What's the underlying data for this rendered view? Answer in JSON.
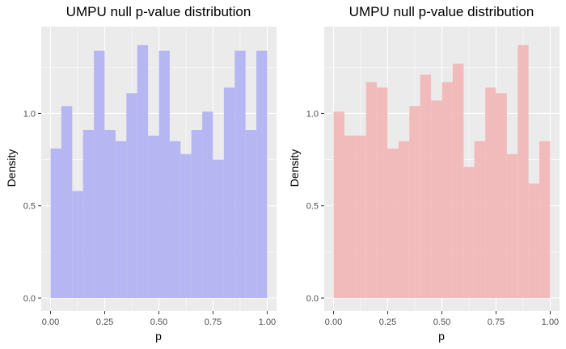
{
  "colors": {
    "panel_background": "#ebebeb",
    "grid": "#ffffff",
    "tick": "#333333",
    "tick_label": "#4d4d4d",
    "left_fill": "#b3b3f2",
    "right_fill": "#f2b8b8"
  },
  "chart_data": [
    {
      "type": "bar",
      "title": "UMPU null p-value distribution",
      "xlabel": "p",
      "ylabel": "Density",
      "xlim": [
        0.0,
        1.0
      ],
      "ylim": [
        0.0,
        1.5
      ],
      "xticks": [
        0.0,
        0.25,
        0.5,
        0.75,
        1.0
      ],
      "xtick_labels": [
        "0.00",
        "0.25",
        "0.50",
        "0.75",
        "1.00"
      ],
      "yticks": [
        0.0,
        0.5,
        1.0
      ],
      "ytick_labels": [
        "0.0",
        "0.5",
        "1.0"
      ],
      "bin_width": 0.05,
      "bins": [
        {
          "x0": 0.0,
          "x1": 0.05,
          "density": 0.81
        },
        {
          "x0": 0.05,
          "x1": 0.1,
          "density": 1.04
        },
        {
          "x0": 0.1,
          "x1": 0.15,
          "density": 0.58
        },
        {
          "x0": 0.15,
          "x1": 0.2,
          "density": 0.91
        },
        {
          "x0": 0.2,
          "x1": 0.25,
          "density": 1.34
        },
        {
          "x0": 0.25,
          "x1": 0.3,
          "density": 0.91
        },
        {
          "x0": 0.3,
          "x1": 0.35,
          "density": 0.85
        },
        {
          "x0": 0.35,
          "x1": 0.4,
          "density": 1.11
        },
        {
          "x0": 0.4,
          "x1": 0.45,
          "density": 1.37
        },
        {
          "x0": 0.45,
          "x1": 0.5,
          "density": 0.88
        },
        {
          "x0": 0.5,
          "x1": 0.55,
          "density": 1.34
        },
        {
          "x0": 0.55,
          "x1": 0.6,
          "density": 0.85
        },
        {
          "x0": 0.6,
          "x1": 0.65,
          "density": 0.78
        },
        {
          "x0": 0.65,
          "x1": 0.7,
          "density": 0.91
        },
        {
          "x0": 0.7,
          "x1": 0.75,
          "density": 1.01
        },
        {
          "x0": 0.75,
          "x1": 0.8,
          "density": 0.75
        },
        {
          "x0": 0.8,
          "x1": 0.85,
          "density": 1.14
        },
        {
          "x0": 0.85,
          "x1": 0.9,
          "density": 1.34
        },
        {
          "x0": 0.9,
          "x1": 0.95,
          "density": 0.91
        },
        {
          "x0": 0.95,
          "x1": 1.0,
          "density": 1.34
        }
      ]
    },
    {
      "type": "bar",
      "title": "UMPU null p-value distribution",
      "xlabel": "p",
      "ylabel": "Density",
      "xlim": [
        0.0,
        1.0
      ],
      "ylim": [
        0.0,
        1.5
      ],
      "xticks": [
        0.0,
        0.25,
        0.5,
        0.75,
        1.0
      ],
      "xtick_labels": [
        "0.00",
        "0.25",
        "0.50",
        "0.75",
        "1.00"
      ],
      "yticks": [
        0.0,
        0.5,
        1.0
      ],
      "ytick_labels": [
        "0.0",
        "0.5",
        "1.0"
      ],
      "bin_width": 0.05,
      "bins": [
        {
          "x0": 0.0,
          "x1": 0.05,
          "density": 1.01
        },
        {
          "x0": 0.05,
          "x1": 0.1,
          "density": 0.88
        },
        {
          "x0": 0.1,
          "x1": 0.15,
          "density": 0.88
        },
        {
          "x0": 0.15,
          "x1": 0.2,
          "density": 1.17
        },
        {
          "x0": 0.2,
          "x1": 0.25,
          "density": 1.14
        },
        {
          "x0": 0.25,
          "x1": 0.3,
          "density": 0.81
        },
        {
          "x0": 0.3,
          "x1": 0.35,
          "density": 0.85
        },
        {
          "x0": 0.35,
          "x1": 0.4,
          "density": 1.04
        },
        {
          "x0": 0.4,
          "x1": 0.45,
          "density": 1.21
        },
        {
          "x0": 0.45,
          "x1": 0.5,
          "density": 1.07
        },
        {
          "x0": 0.5,
          "x1": 0.55,
          "density": 1.17
        },
        {
          "x0": 0.55,
          "x1": 0.6,
          "density": 1.27
        },
        {
          "x0": 0.6,
          "x1": 0.65,
          "density": 0.71
        },
        {
          "x0": 0.65,
          "x1": 0.7,
          "density": 0.85
        },
        {
          "x0": 0.7,
          "x1": 0.75,
          "density": 1.14
        },
        {
          "x0": 0.75,
          "x1": 0.8,
          "density": 1.11
        },
        {
          "x0": 0.8,
          "x1": 0.85,
          "density": 0.78
        },
        {
          "x0": 0.85,
          "x1": 0.9,
          "density": 1.37
        },
        {
          "x0": 0.9,
          "x1": 0.95,
          "density": 0.62
        },
        {
          "x0": 0.95,
          "x1": 1.0,
          "density": 0.85
        }
      ]
    }
  ]
}
